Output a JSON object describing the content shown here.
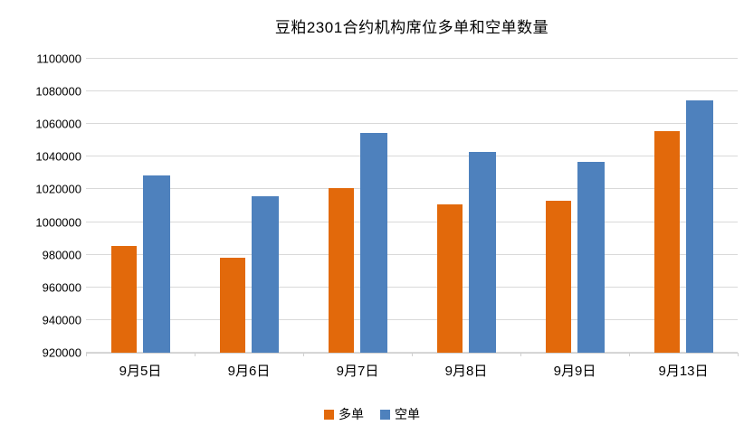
{
  "chart_data": {
    "type": "bar",
    "title": "豆粕2301合约机构席位多单和空单数量",
    "categories": [
      "9月5日",
      "9月6日",
      "9月7日",
      "9月8日",
      "9月9日",
      "9月13日"
    ],
    "series": [
      {
        "name": "多单",
        "color": "#e2690b",
        "values": [
          985500,
          978000,
          1021000,
          1011000,
          1013000,
          1055500
        ]
      },
      {
        "name": "空单",
        "color": "#4e81bd",
        "values": [
          1028500,
          1016000,
          1054500,
          1043000,
          1037000,
          1074500
        ]
      }
    ],
    "ylim": [
      920000,
      1100000
    ],
    "ytick_step": 20000,
    "y_tick_labels": [
      "920000",
      "940000",
      "960000",
      "980000",
      "1000000",
      "1020000",
      "1040000",
      "1060000",
      "1080000",
      "1100000"
    ],
    "xlabel": "",
    "ylabel": "",
    "grid": "horizontal",
    "gridline_color": "#d9d9d9",
    "legend_position": "bottom",
    "background_color": "#ffffff"
  }
}
